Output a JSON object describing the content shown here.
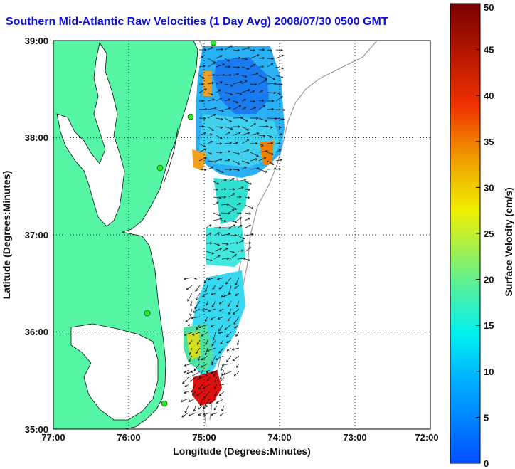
{
  "title": "Southern Mid-Atlantic Raw Velocities (1 Day Avg) 2008/07/30 0500 GMT",
  "x_axis": {
    "label": "Longitude (Degrees:Minutes)",
    "ticks": [
      "77:00",
      "76:00",
      "75:00",
      "74:00",
      "73:00",
      "72:00"
    ]
  },
  "y_axis": {
    "label": "Latitude (Degrees:Minutes)",
    "ticks": [
      "35:00",
      "36:00",
      "37:00",
      "38:00",
      "39:00"
    ]
  },
  "colorbar": {
    "label": "Surface Velocity (cm/s)",
    "ticks": [
      "0",
      "5",
      "10",
      "15",
      "20",
      "25",
      "30",
      "35",
      "40",
      "45",
      "50"
    ],
    "min": 0,
    "max": 50
  },
  "colors": {
    "land": "#55f5a5",
    "water": "#ffffff",
    "coast": "#111111",
    "bathymetry": "#999999",
    "title": "#1010dd",
    "station": "#22ee22"
  }
}
